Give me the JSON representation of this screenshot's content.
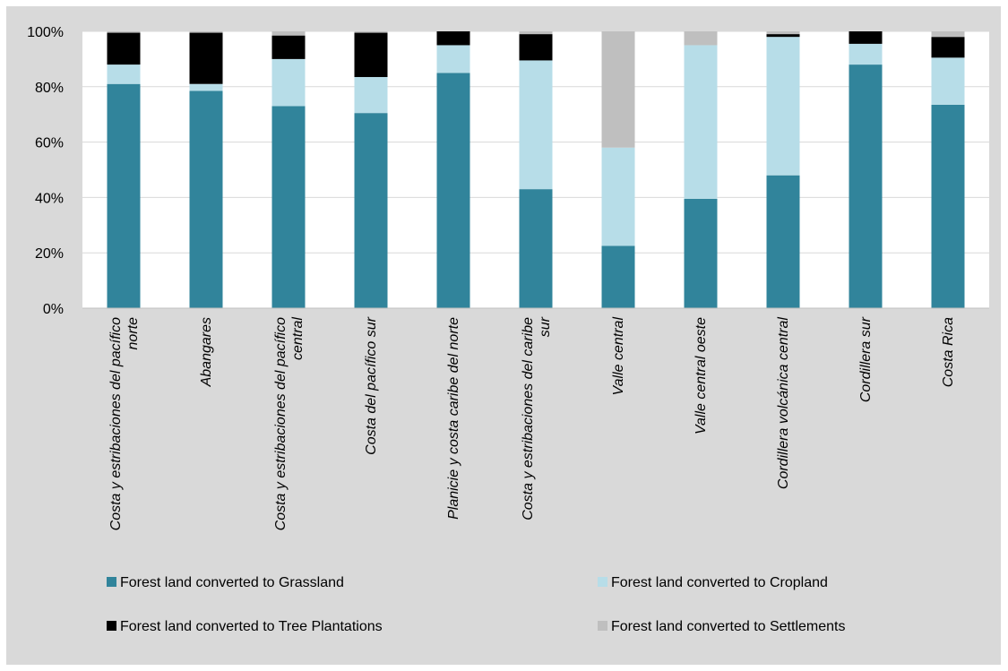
{
  "chart_data": {
    "type": "bar",
    "stacked": true,
    "percent": true,
    "title": "",
    "xlabel": "",
    "ylabel": "",
    "ylim": [
      0,
      100
    ],
    "yticks": [
      "0%",
      "20%",
      "40%",
      "60%",
      "80%",
      "100%"
    ],
    "grid": true,
    "legend_position": "bottom",
    "categories": [
      "Costa y estribaciones del pacífico norte",
      "Abangares",
      "Costa y estribaciones del pacífico central",
      "Costa del pacífico sur",
      "Planicie y costa caribe del norte",
      "Costa y estribaciones del caribe sur",
      "Valle central",
      "Valle central oeste",
      "Cordillera volcánica central",
      "Cordillera sur",
      "Costa Rica"
    ],
    "category_lines": [
      [
        "Costa y estribaciones del pacífico",
        "norte"
      ],
      [
        "Abangares"
      ],
      [
        "Costa y estribaciones del pacífico",
        "central"
      ],
      [
        "Costa del pacífico sur"
      ],
      [
        "Planicie y costa caribe del norte"
      ],
      [
        "Costa y estribaciones del caribe",
        "sur"
      ],
      [
        "Valle central"
      ],
      [
        "Valle central oeste"
      ],
      [
        "Cordillera volcánica central"
      ],
      [
        "Cordillera sur"
      ],
      [
        "Costa Rica"
      ]
    ],
    "series": [
      {
        "name": "Forest land converted to Grassland",
        "color": "#31849b",
        "values": [
          81,
          78.5,
          73,
          70.5,
          85,
          43,
          22.5,
          39.5,
          48,
          88,
          73.5
        ]
      },
      {
        "name": "Forest land converted to Cropland",
        "color": "#b7dde8",
        "values": [
          7,
          2.5,
          17,
          13,
          10,
          46.5,
          35.5,
          55.5,
          50,
          7.5,
          17
        ]
      },
      {
        "name": "Forest land converted to Tree Plantations",
        "color": "#000000",
        "values": [
          11.5,
          18.5,
          8.5,
          16,
          5,
          9.5,
          0,
          0,
          1,
          4.5,
          7.5
        ]
      },
      {
        "name": "Forest land converted to Settlements",
        "color": "#bfbfbf",
        "values": [
          0.5,
          0.5,
          1.5,
          0.5,
          0,
          1,
          42,
          5,
          1,
          0,
          2
        ]
      }
    ]
  },
  "colors": {
    "panel_background": "#d9d9d9",
    "plot_background": "#ffffff",
    "gridline": "#d9d9d9"
  }
}
